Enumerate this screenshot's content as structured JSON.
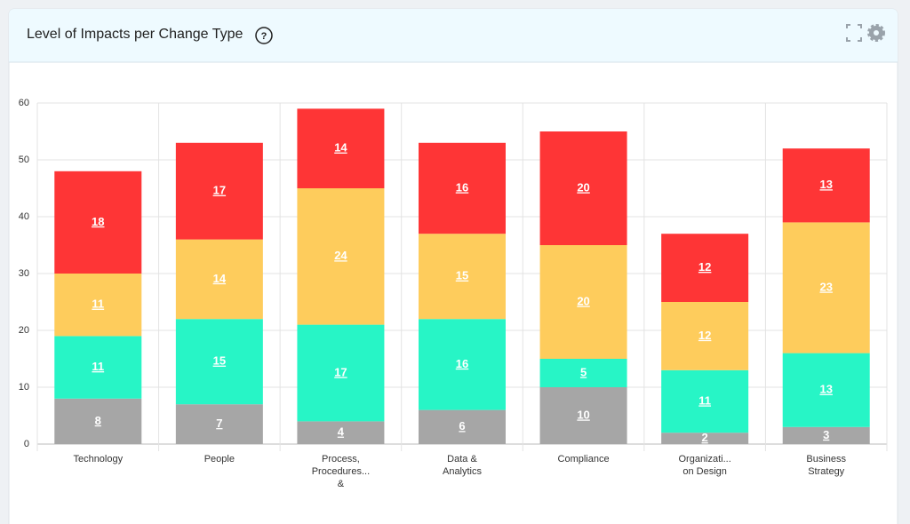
{
  "help_icon": "?",
  "chart_data": {
    "type": "stacked-bar",
    "title": "Level of Impacts per Change Type",
    "categories": [
      [
        "Technology"
      ],
      [
        "People"
      ],
      [
        "Process,",
        "Procedures...",
        "&"
      ],
      [
        "Data &",
        "Analytics"
      ],
      [
        "Compliance"
      ],
      [
        "Organizati...",
        "on Design"
      ],
      [
        "Business",
        "Strategy"
      ]
    ],
    "series": [
      {
        "color": "#a6a6a6",
        "values": [
          8,
          7,
          4,
          6,
          10,
          2,
          3
        ]
      },
      {
        "color": "#27f5c6",
        "values": [
          11,
          15,
          17,
          16,
          5,
          11,
          13
        ]
      },
      {
        "color": "#fecc5c",
        "values": [
          11,
          14,
          24,
          15,
          20,
          12,
          23
        ]
      },
      {
        "color": "#fe3536",
        "values": [
          18,
          17,
          14,
          16,
          20,
          12,
          13
        ]
      }
    ],
    "ylim": [
      0,
      60
    ],
    "yticks": [
      0,
      10,
      20,
      30,
      40,
      50,
      60
    ],
    "grid": true
  }
}
